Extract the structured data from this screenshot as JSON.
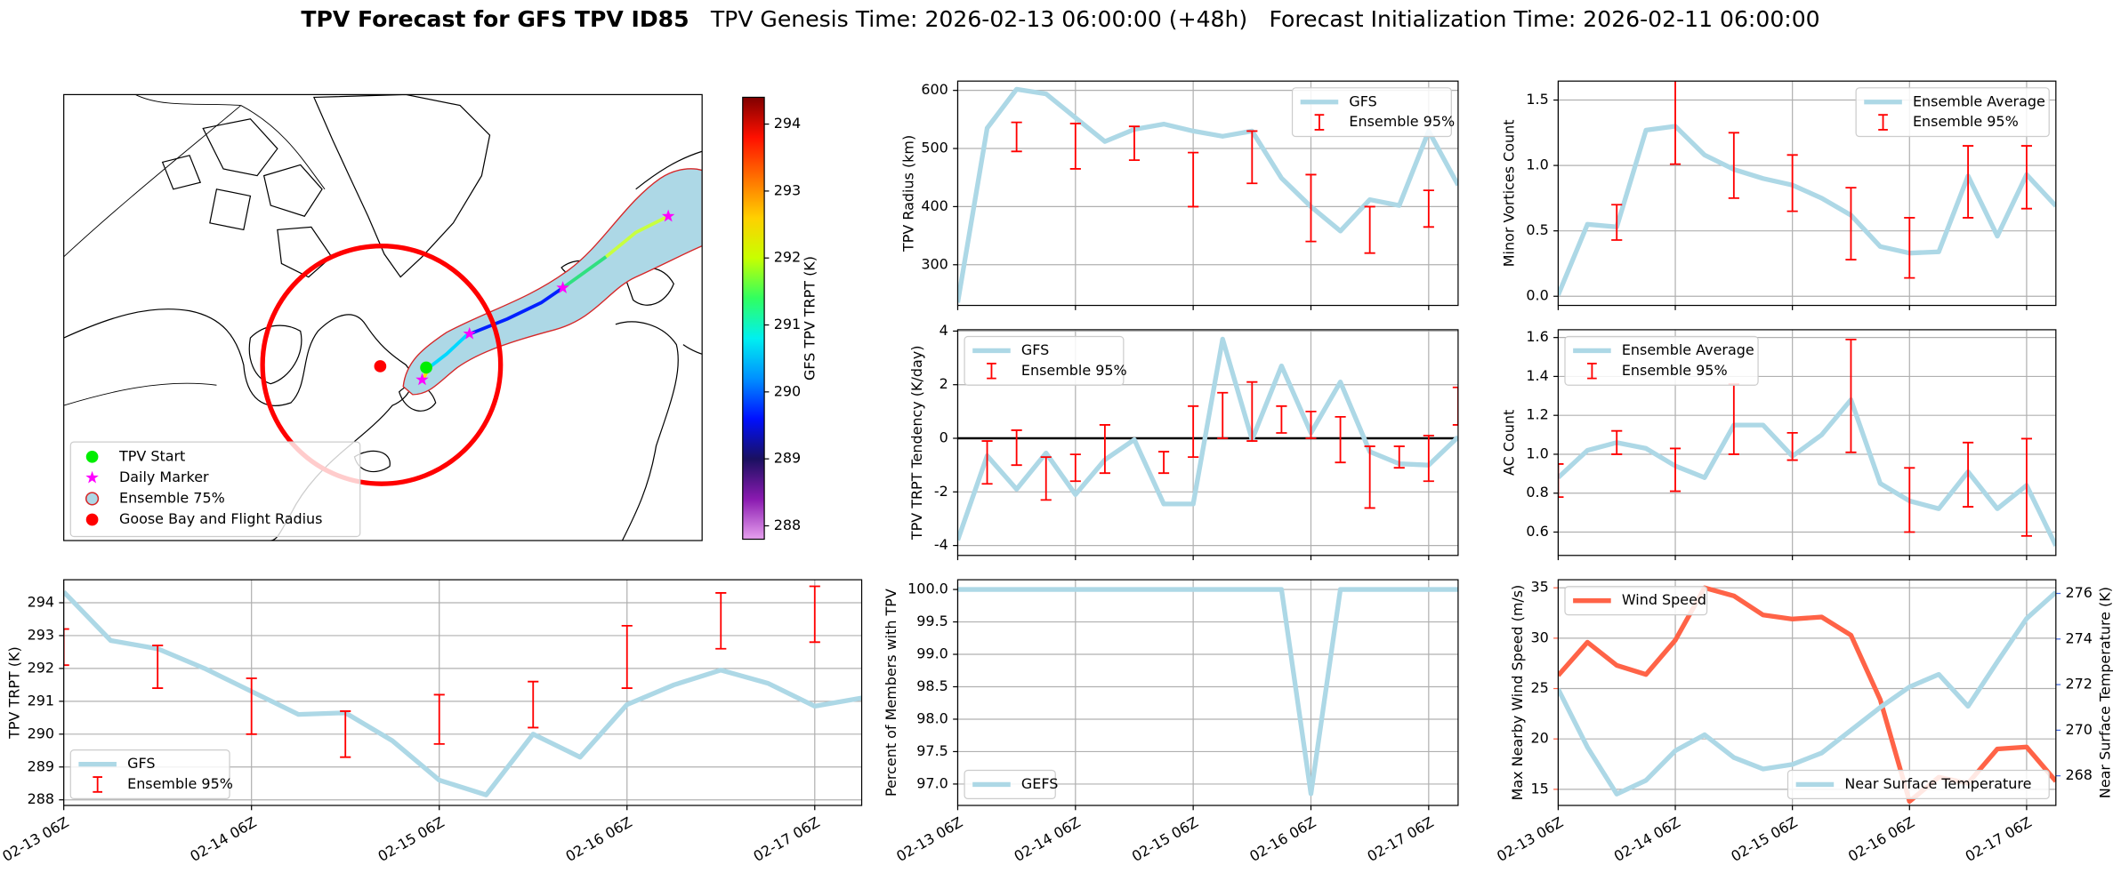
{
  "title": "TPV Forecast for GFS TPV ID85",
  "genesis": "TPV Genesis Time: 2026-02-13 06:00:00 (+48h)",
  "init": "Forecast Initialization Time: 2026-02-11 06:00:00",
  "chart_data": [
    {
      "type": "map",
      "colorbar": {
        "label": "GFS TPV TRPT (K)",
        "lim": [
          287.8,
          294.4
        ],
        "ticks": [
          288,
          289,
          290,
          291,
          292,
          293,
          294
        ],
        "colors": [
          "#e6a0ee",
          "#8a1ab0",
          "#1a1060",
          "#0010ff",
          "#0090ff",
          "#00f0f0",
          "#30ff60",
          "#c8ff00",
          "#ffd000",
          "#ff7000",
          "#ff1000",
          "#800000"
        ]
      },
      "legend": {
        "corner": "lower left",
        "entries": [
          {
            "name": "TPV Start",
            "marker": "circle",
            "color": "#00ee00"
          },
          {
            "name": "Daily Marker",
            "marker": "star",
            "color": "#ff00ff"
          },
          {
            "name": "Ensemble 75%",
            "marker": "circle",
            "color": "#add8e6",
            "edge": "#d62728"
          },
          {
            "name": "Goose Bay and Flight Radius",
            "marker": "circle",
            "color": "#ff0000"
          }
        ]
      }
    },
    {
      "type": "line",
      "ylabel": "TPV Radius (km)",
      "show_xticklabels": false,
      "grid": true,
      "legend": "upper right",
      "categories": [
        "02-13 06Z",
        null,
        null,
        null,
        "02-14 06Z",
        null,
        null,
        null,
        "02-15 06Z",
        null,
        null,
        null,
        "02-16 06Z",
        null,
        null,
        null,
        "02-17 06Z",
        null
      ],
      "ylim": [
        230,
        616
      ],
      "yticks": [
        300,
        400,
        500,
        600
      ],
      "series": [
        {
          "name": "GFS",
          "color": "#add8e6",
          "values": [
            235,
            535,
            602,
            594,
            553,
            512,
            533,
            542,
            530,
            521,
            530,
            449,
            400,
            358,
            412,
            402,
            530,
            437
          ]
        },
        {
          "name": "Ensemble 95%",
          "type": "errorbar",
          "color": "#ff0000",
          "low": [
            null,
            null,
            495,
            null,
            465,
            null,
            480,
            null,
            400,
            null,
            440,
            null,
            340,
            null,
            320,
            null,
            365,
            null
          ],
          "high": [
            null,
            null,
            545,
            null,
            543,
            null,
            538,
            null,
            493,
            null,
            530,
            null,
            455,
            null,
            400,
            null,
            428,
            null
          ]
        }
      ]
    },
    {
      "type": "line",
      "ylabel": "Minor Vortices Count",
      "show_xticklabels": false,
      "grid": true,
      "legend": "upper right",
      "categories": [
        "02-13 06Z",
        null,
        null,
        null,
        "02-14 06Z",
        null,
        null,
        null,
        "02-15 06Z",
        null,
        null,
        null,
        "02-16 06Z",
        null,
        null,
        null,
        "02-17 06Z",
        null
      ],
      "ylim": [
        -0.07,
        1.645
      ],
      "yticks": [
        {
          "value": 0,
          "label": "0.0"
        },
        0.5,
        {
          "value": 1,
          "label": "1.0"
        },
        1.5
      ],
      "series": [
        {
          "name": "Ensemble Average",
          "color": "#add8e6",
          "values": [
            0.01,
            0.55,
            0.53,
            1.27,
            1.3,
            1.08,
            0.97,
            0.9,
            0.85,
            0.75,
            0.62,
            0.38,
            0.33,
            0.34,
            0.92,
            0.46,
            0.93,
            0.69
          ]
        },
        {
          "name": "Ensemble 95%",
          "type": "errorbar",
          "color": "#ff0000",
          "low": [
            null,
            null,
            0.43,
            null,
            1.01,
            null,
            0.75,
            null,
            0.65,
            null,
            0.28,
            null,
            0.14,
            null,
            0.6,
            null,
            0.67,
            null
          ],
          "high": [
            null,
            null,
            0.7,
            null,
            1.7,
            null,
            1.25,
            null,
            1.08,
            null,
            0.83,
            null,
            0.6,
            null,
            1.15,
            null,
            1.15,
            null
          ]
        }
      ]
    },
    {
      "type": "line",
      "ylabel": "TPV TRPT Tendency (K/day)",
      "show_xticklabels": false,
      "grid": true,
      "legend": "upper left",
      "hlines": [
        0
      ],
      "categories": [
        "02-13 06Z",
        null,
        null,
        null,
        "02-14 06Z",
        null,
        null,
        null,
        "02-15 06Z",
        null,
        null,
        null,
        "02-16 06Z",
        null,
        null,
        null,
        "02-17 06Z",
        null
      ],
      "ylim": [
        -4.37,
        4.05
      ],
      "yticks": [
        -4,
        -2,
        0,
        2,
        4
      ],
      "series": [
        {
          "name": "GFS",
          "color": "#add8e6",
          "values": [
            -3.8,
            -0.65,
            -1.9,
            -0.55,
            -2.1,
            -0.8,
            -0.05,
            -2.45,
            -2.45,
            3.7,
            -0.05,
            2.7,
            0.2,
            2.1,
            -0.5,
            -0.95,
            -1.0,
            0.05
          ]
        },
        {
          "name": "Ensemble 95%",
          "type": "errorbar",
          "color": "#ff0000",
          "low": [
            null,
            -1.7,
            -1.0,
            -2.3,
            -1.6,
            -1.3,
            null,
            -1.3,
            -0.7,
            0,
            -0.1,
            0.2,
            0,
            -0.9,
            -2.6,
            -1.1,
            -1.6,
            0.5
          ],
          "high": [
            null,
            -0.1,
            0.3,
            -0.7,
            -0.6,
            0.5,
            null,
            -0.5,
            1.2,
            1.7,
            2.1,
            1.2,
            1.0,
            0.8,
            -0.3,
            -0.3,
            0.1,
            1.9
          ]
        }
      ]
    },
    {
      "type": "line",
      "ylabel": "AC Count",
      "show_xticklabels": false,
      "grid": true,
      "legend": "upper left",
      "categories": [
        "02-13 06Z",
        null,
        null,
        null,
        "02-14 06Z",
        null,
        null,
        null,
        "02-15 06Z",
        null,
        null,
        null,
        "02-16 06Z",
        null,
        null,
        null,
        "02-17 06Z",
        null
      ],
      "ylim": [
        0.48,
        1.64
      ],
      "yticks": [
        0.6,
        0.8,
        {
          "value": 1,
          "label": "1.0"
        },
        1.2,
        1.4,
        1.6
      ],
      "series": [
        {
          "name": "Ensemble Average",
          "color": "#add8e6",
          "values": [
            0.88,
            1.02,
            1.06,
            1.03,
            0.94,
            0.88,
            1.15,
            1.15,
            0.99,
            1.1,
            1.28,
            0.85,
            0.76,
            0.72,
            0.91,
            0.72,
            0.84,
            0.53
          ]
        },
        {
          "name": "Ensemble 95%",
          "type": "errorbar",
          "color": "#ff0000",
          "low": [
            0.78,
            null,
            1.0,
            null,
            0.81,
            null,
            1.0,
            null,
            0.97,
            null,
            1.01,
            null,
            0.6,
            null,
            0.73,
            null,
            0.58,
            null
          ],
          "high": [
            0.95,
            null,
            1.12,
            null,
            1.03,
            null,
            1.36,
            null,
            1.11,
            null,
            1.59,
            null,
            0.93,
            null,
            1.06,
            null,
            1.08,
            null
          ]
        }
      ]
    },
    {
      "type": "line",
      "ylabel": "TPV TRPT (K)",
      "show_xticklabels": true,
      "grid": true,
      "legend": "lower left",
      "categories": [
        "02-13 06Z",
        null,
        null,
        null,
        "02-14 06Z",
        null,
        null,
        null,
        "02-15 06Z",
        null,
        null,
        null,
        "02-16 06Z",
        null,
        null,
        null,
        "02-17 06Z",
        null
      ],
      "ylim": [
        287.83,
        294.7
      ],
      "yticks": [
        288,
        289,
        290,
        291,
        292,
        293,
        294
      ],
      "series": [
        {
          "name": "GFS",
          "color": "#add8e6",
          "values": [
            294.33,
            292.85,
            292.6,
            292.0,
            291.3,
            290.6,
            290.65,
            289.8,
            288.6,
            288.15,
            290.0,
            289.3,
            290.9,
            291.5,
            291.95,
            291.55,
            290.85,
            291.1
          ]
        },
        {
          "name": "Ensemble 95%",
          "type": "errorbar",
          "color": "#ff0000",
          "low": [
            292.1,
            null,
            291.4,
            null,
            290.0,
            null,
            289.3,
            null,
            289.7,
            null,
            290.2,
            null,
            291.4,
            null,
            292.6,
            null,
            292.8,
            null
          ],
          "high": [
            293.2,
            null,
            292.7,
            null,
            291.7,
            null,
            290.7,
            null,
            291.2,
            null,
            291.6,
            null,
            293.3,
            null,
            294.3,
            null,
            294.5,
            null
          ]
        }
      ]
    },
    {
      "type": "line",
      "ylabel": "Percent of Members with TPV",
      "show_xticklabels": true,
      "grid": true,
      "legend": "lower left",
      "categories": [
        "02-13 06Z",
        null,
        null,
        null,
        "02-14 06Z",
        null,
        null,
        null,
        "02-15 06Z",
        null,
        null,
        null,
        "02-16 06Z",
        null,
        null,
        null,
        "02-17 06Z",
        null
      ],
      "ylim": [
        96.67,
        100.15
      ],
      "yticks": [
        {
          "value": 97,
          "label": "97.0"
        },
        97.5,
        {
          "value": 98,
          "label": "98.0"
        },
        98.5,
        {
          "value": 99,
          "label": "99.0"
        },
        99.5,
        {
          "value": 100,
          "label": "100.0"
        }
      ],
      "series": [
        {
          "name": "GEFS",
          "color": "#add8e6",
          "values": [
            100,
            100,
            100,
            100,
            100,
            100,
            100,
            100,
            100,
            100,
            100,
            100,
            96.85,
            100,
            100,
            100,
            100,
            100
          ]
        }
      ]
    },
    {
      "type": "line",
      "ylabel": "Max Nearby Wind Speed (m/s)",
      "ylabel_color": "#ff6347",
      "y2label": "Near Surface Temperature (K)",
      "y2label_color": "#4169e1",
      "show_xticklabels": true,
      "grid": true,
      "legend": "upper left",
      "legend2": "lower right",
      "categories": [
        "02-13 06Z",
        null,
        null,
        null,
        "02-14 06Z",
        null,
        null,
        null,
        "02-15 06Z",
        null,
        null,
        null,
        "02-16 06Z",
        null,
        null,
        null,
        "02-17 06Z",
        null
      ],
      "ylim": [
        13.4,
        35.8
      ],
      "yticks": [
        15,
        20,
        25,
        30,
        35
      ],
      "y2lim": [
        266.7,
        276.6
      ],
      "y2ticks": [
        268,
        270,
        272,
        274,
        276
      ],
      "series": [
        {
          "name": "Wind Speed",
          "color": "#ff6347",
          "values": [
            26.3,
            29.6,
            27.3,
            26.4,
            29.8,
            35.0,
            34.2,
            32.3,
            31.9,
            32.1,
            30.3,
            23.9,
            13.8,
            16.2,
            15.6,
            19.0,
            19.2,
            15.8
          ]
        },
        {
          "name": "Near Surface Temperature",
          "color": "#add8e6",
          "axis": "y2",
          "values": [
            271.8,
            269.25,
            267.2,
            267.8,
            269.1,
            269.8,
            268.8,
            268.3,
            268.5,
            269.0,
            270.0,
            271.0,
            271.9,
            272.45,
            271.05,
            273.0,
            274.9,
            276.05
          ]
        }
      ]
    }
  ]
}
